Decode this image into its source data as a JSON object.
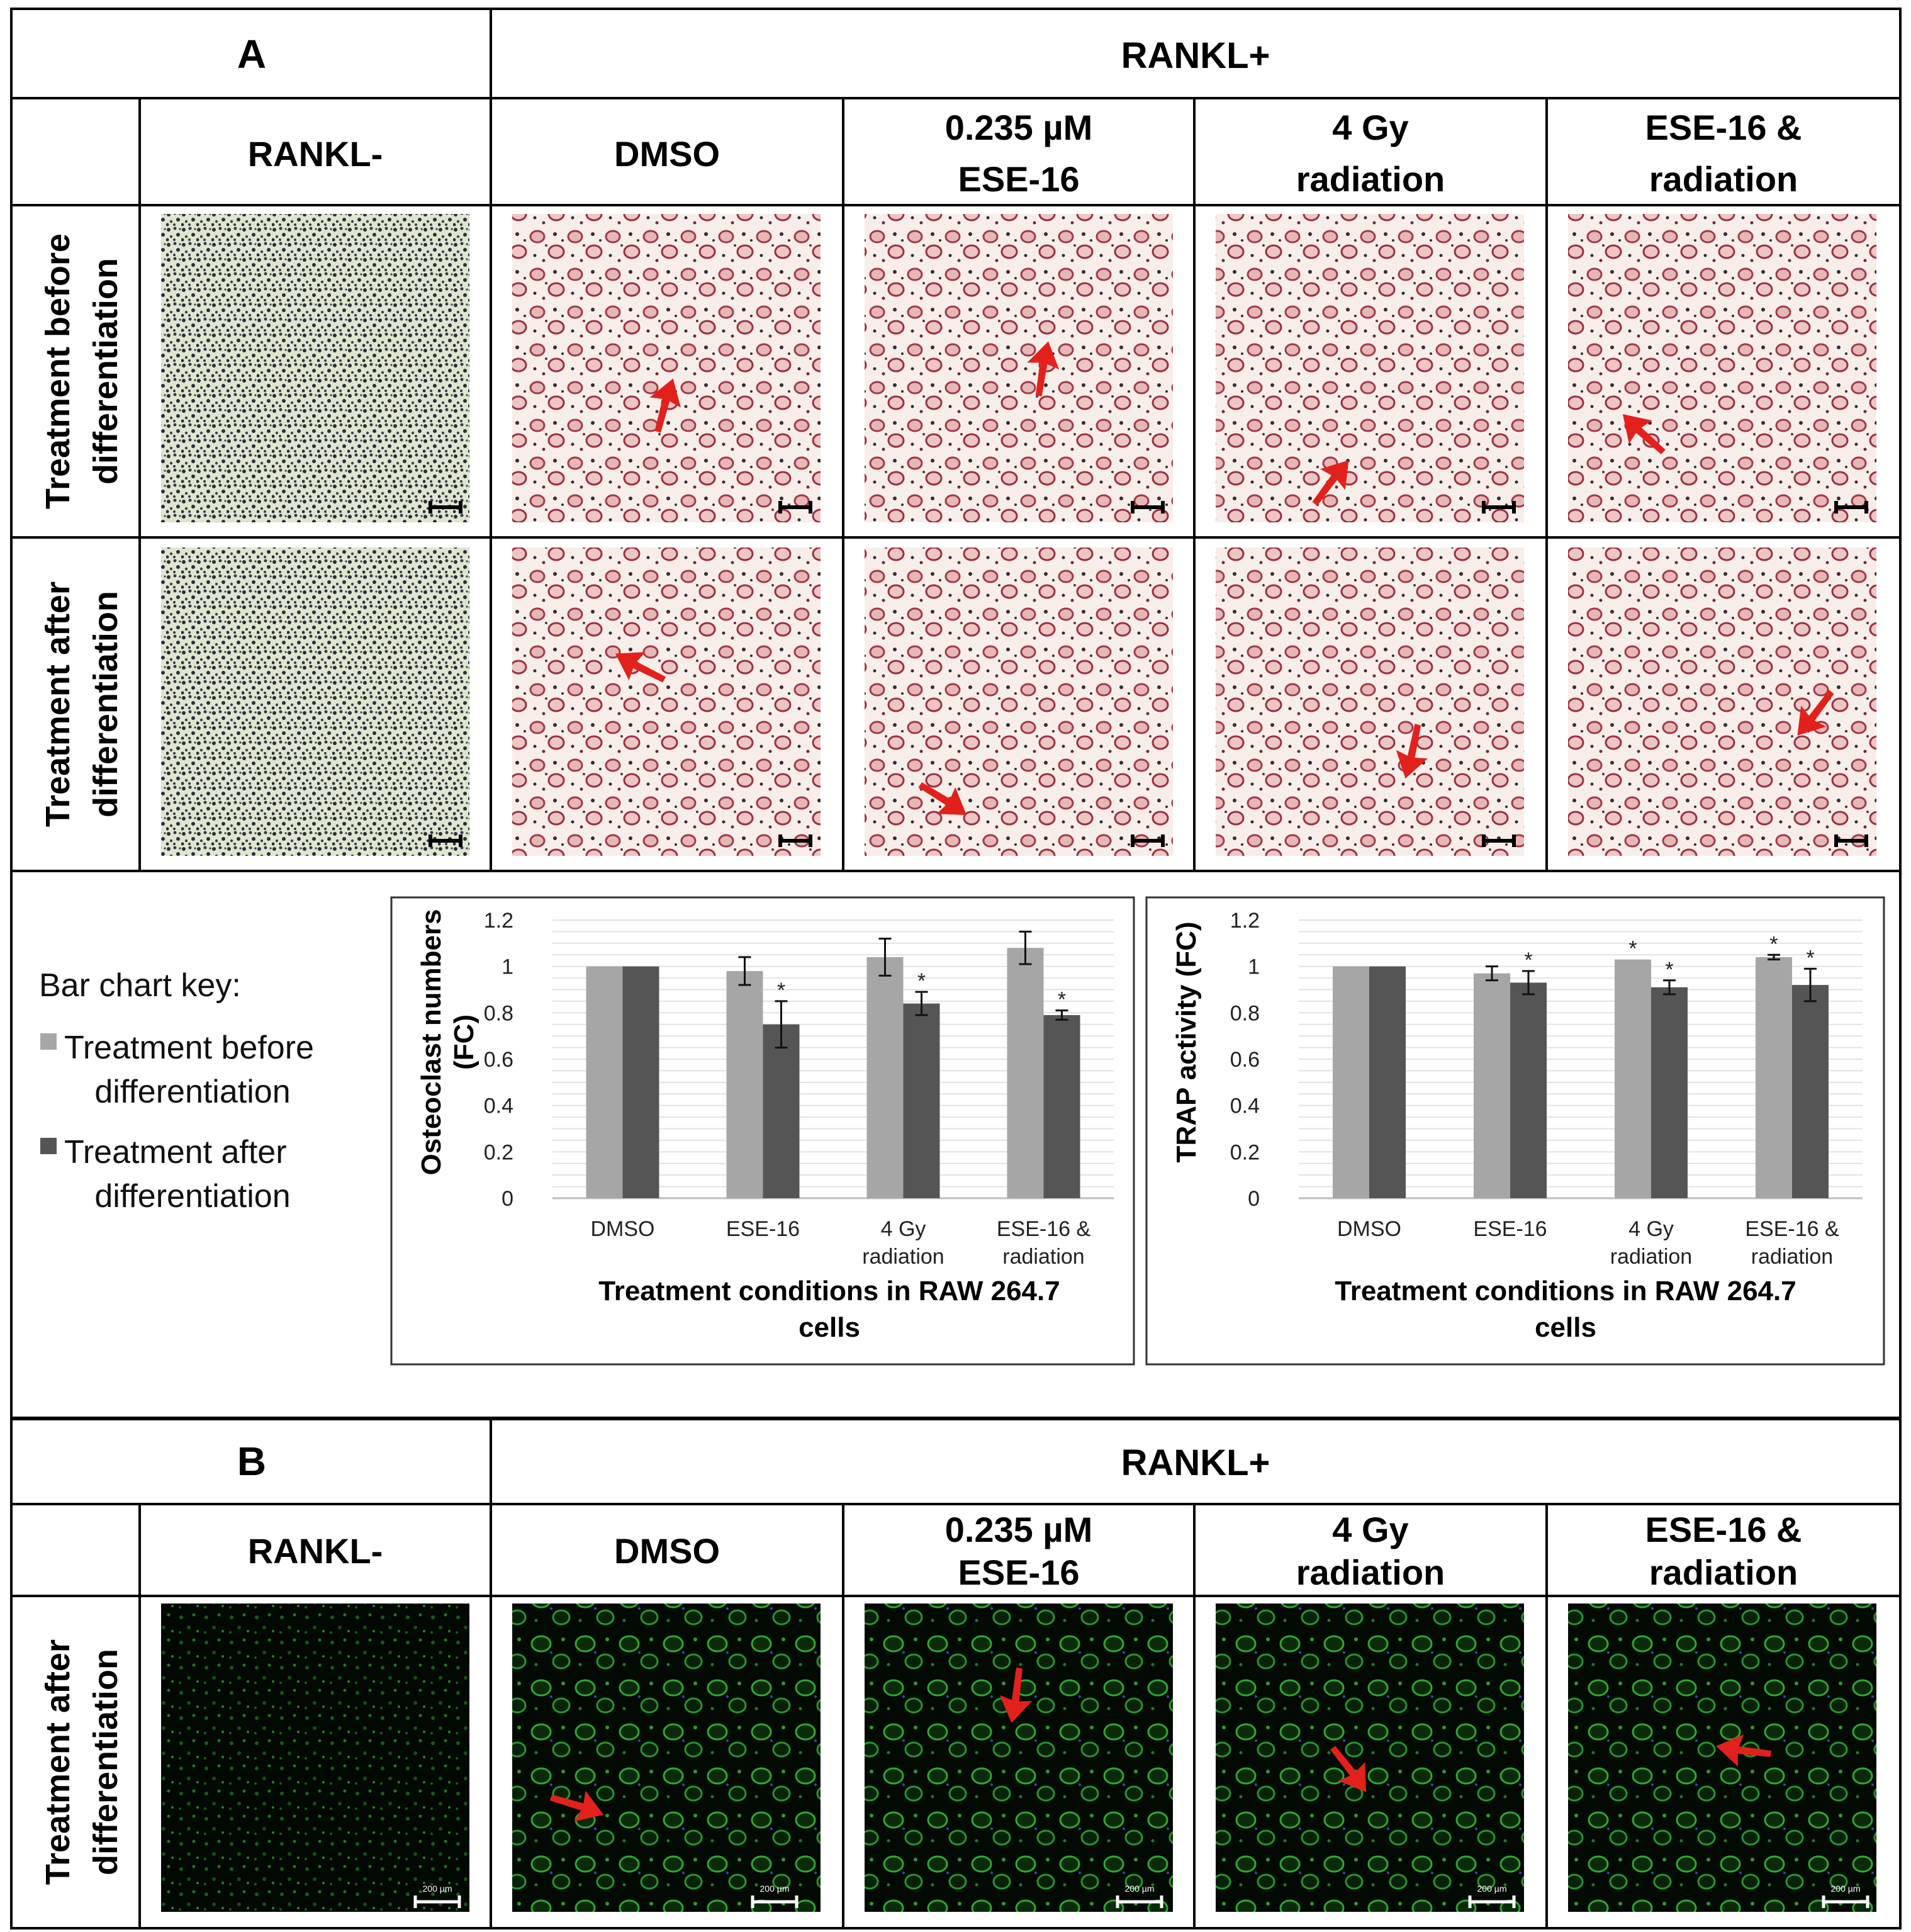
{
  "panel_a": {
    "label": "A",
    "group_header": "RANKL+",
    "columns": [
      {
        "line1": "RANKL-",
        "line2": ""
      },
      {
        "line1": "DMSO",
        "line2": ""
      },
      {
        "line1": "0.235 µM",
        "line2": "ESE-16"
      },
      {
        "line1": "4 Gy",
        "line2": "radiation"
      },
      {
        "line1": "ESE-16 &",
        "line2": "radiation"
      }
    ],
    "rows": [
      {
        "line1": "Treatment before",
        "line2": "differentiation"
      },
      {
        "line1": "Treatment after",
        "line2": "differentiation"
      }
    ]
  },
  "panel_b": {
    "label": "B",
    "group_header": "RANKL+",
    "columns": [
      {
        "line1": "RANKL-",
        "line2": ""
      },
      {
        "line1": "DMSO",
        "line2": ""
      },
      {
        "line1": "0.235 µM",
        "line2": "ESE-16"
      },
      {
        "line1": "4 Gy",
        "line2": "radiation"
      },
      {
        "line1": "ESE-16 &",
        "line2": "radiation"
      }
    ],
    "row": {
      "line1": "Treatment after",
      "line2": "differentiation"
    }
  },
  "legend": {
    "title": "Bar chart key:",
    "items": [
      {
        "line1": "Treatment before",
        "line2": "differentiation",
        "color": "#a6a6a6"
      },
      {
        "line1": "Treatment after",
        "line2": "differentiation",
        "color": "#555555"
      }
    ]
  },
  "scale_bar_label": "200 µm",
  "colors": {
    "bar_before": "#a6a6a6",
    "bar_after": "#555555",
    "arrow": "#e3211c",
    "trap_stain": "#b03a4a",
    "fluorescence": "#33cc33"
  },
  "chart_data": [
    {
      "type": "bar",
      "ylabel": "Osteoclast numbers (FC)",
      "ylabel_line1": "Osteoclast numbers",
      "ylabel_line2": "(FC)",
      "xlabel_line1": "Treatment conditions in RAW 264.7",
      "xlabel_line2": "cells",
      "categories": [
        {
          "line1": "DMSO",
          "line2": ""
        },
        {
          "line1": "ESE-16",
          "line2": ""
        },
        {
          "line1": "4 Gy",
          "line2": "radiation"
        },
        {
          "line1": "ESE-16 &",
          "line2": "radiation"
        }
      ],
      "ylim": [
        0,
        1.2
      ],
      "yticks": [
        "0",
        "0.2",
        "0.4",
        "0.6",
        "0.8",
        "1",
        "1.2"
      ],
      "grid": true,
      "series": [
        {
          "values": [
            1.0,
            0.98,
            1.04,
            1.08
          ],
          "errors": [
            0.0,
            0.06,
            0.08,
            0.07
          ],
          "sig": [
            "",
            "",
            "",
            ""
          ]
        },
        {
          "values": [
            1.0,
            0.75,
            0.84,
            0.79
          ],
          "errors": [
            0.0,
            0.1,
            0.05,
            0.02
          ],
          "sig": [
            "",
            "*",
            "*",
            "*"
          ]
        }
      ]
    },
    {
      "type": "bar",
      "ylabel": "TRAP activity (FC)",
      "ylabel_line1": "TRAP activity (FC)",
      "ylabel_line2": "",
      "xlabel_line1": "Treatment conditions in RAW 264.7",
      "xlabel_line2": "cells",
      "categories": [
        {
          "line1": "DMSO",
          "line2": ""
        },
        {
          "line1": "ESE-16",
          "line2": ""
        },
        {
          "line1": "4 Gy",
          "line2": "radiation"
        },
        {
          "line1": "ESE-16 &",
          "line2": "radiation"
        }
      ],
      "ylim": [
        0,
        1.2
      ],
      "yticks": [
        "0",
        "0.2",
        "0.4",
        "0.6",
        "0.8",
        "1",
        "1.2"
      ],
      "grid": true,
      "series": [
        {
          "values": [
            1.0,
            0.97,
            1.03,
            1.04
          ],
          "errors": [
            0.0,
            0.03,
            0.0,
            0.01
          ],
          "sig": [
            "",
            "",
            "*",
            "*"
          ]
        },
        {
          "values": [
            1.0,
            0.93,
            0.91,
            0.92
          ],
          "errors": [
            0.0,
            0.05,
            0.03,
            0.07
          ],
          "sig": [
            "",
            "*",
            "*",
            "*"
          ]
        }
      ]
    }
  ]
}
